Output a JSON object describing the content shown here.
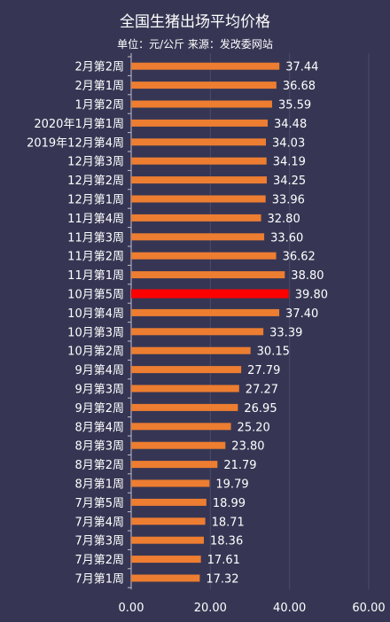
{
  "chart_data": {
    "type": "bar",
    "orientation": "horizontal",
    "title": "全国生猪出场平均价格",
    "subtitle": "单位：元/公斤  来源：发改委网站",
    "xlabel": "",
    "ylabel": "",
    "xlim": [
      0,
      60
    ],
    "x_ticks": [
      "0.00",
      "20.00",
      "40.00",
      "60.00"
    ],
    "grid": true,
    "legend": "none",
    "bar_color": "#ED7D31",
    "highlight_color": "#FF0000",
    "highlight_category": "10月第5周",
    "categories": [
      "2月第2周",
      "2月第1周",
      "1月第2周",
      "2020年1月第1周",
      "2019年12月第4周",
      "12月第3周",
      "12月第2周",
      "12月第1周",
      "11月第4周",
      "11月第3周",
      "11月第2周",
      "11月第1周",
      "10月第5周",
      "10月第4周",
      "10月第3周",
      "10月第2周",
      "9月第4周",
      "9月第3周",
      "9月第2周",
      "8月第4周",
      "8月第3周",
      "8月第2周",
      "8月第1周",
      "7月第5周",
      "7月第4周",
      "7月第3周",
      "7月第2周",
      "7月第1周"
    ],
    "values": [
      37.44,
      36.68,
      35.59,
      34.48,
      34.03,
      34.19,
      34.25,
      33.96,
      32.8,
      33.6,
      36.62,
      38.8,
      39.8,
      37.4,
      33.39,
      30.15,
      27.79,
      27.27,
      26.95,
      25.2,
      23.8,
      21.79,
      19.79,
      18.99,
      18.71,
      18.36,
      17.61,
      17.32
    ],
    "value_labels": [
      "37.44",
      "36.68",
      "35.59",
      "34.48",
      "34.03",
      "34.19",
      "34.25",
      "33.96",
      "32.80",
      "33.60",
      "36.62",
      "38.80",
      "39.80",
      "37.40",
      "33.39",
      "30.15",
      "27.79",
      "27.27",
      "26.95",
      "25.20",
      "23.80",
      "21.79",
      "19.79",
      "18.99",
      "18.71",
      "18.36",
      "17.61",
      "17.32"
    ]
  }
}
